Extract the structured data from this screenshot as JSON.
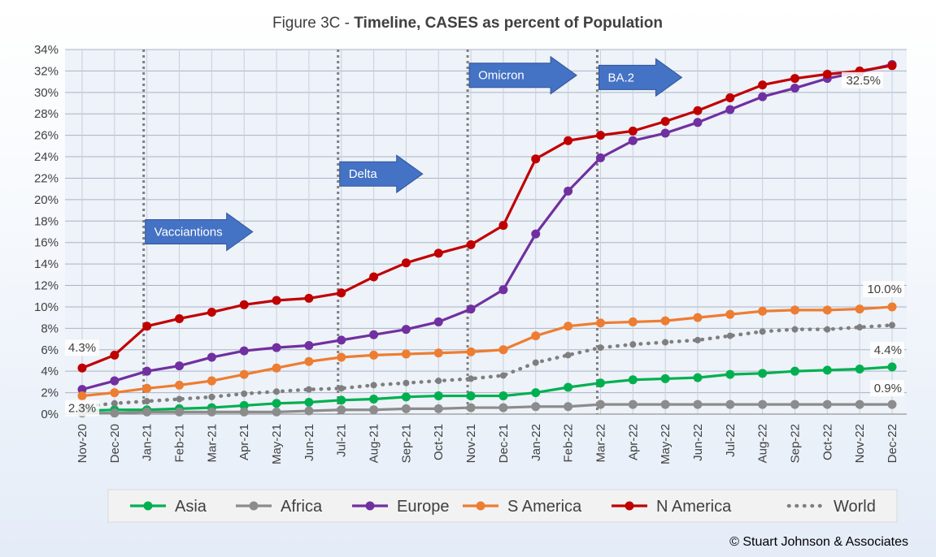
{
  "chart_data": {
    "type": "line",
    "title_prefix": "Figure 3C - ",
    "title_bold": "Timeline, CASES as percent of Population",
    "x": [
      "Nov-20",
      "Dec-20",
      "Jan-21",
      "Feb-21",
      "Mar-21",
      "Apr-21",
      "May-21",
      "Jun-21",
      "Jul-21",
      "Aug-21",
      "Sep-21",
      "Oct-21",
      "Nov-21",
      "Dec-21",
      "Jan-22",
      "Feb-22",
      "Mar-22",
      "Apr-22",
      "May-22",
      "Jun-22",
      "Jul-22",
      "Aug-22",
      "Sep-22",
      "Oct-22",
      "Nov-22",
      "Dec-22"
    ],
    "y_ticks": [
      "0%",
      "2%",
      "4%",
      "6%",
      "8%",
      "10%",
      "12%",
      "14%",
      "16%",
      "18%",
      "20%",
      "22%",
      "24%",
      "26%",
      "28%",
      "30%",
      "32%",
      "34%"
    ],
    "ylim": [
      0,
      34
    ],
    "grid": true,
    "legend_position": "bottom",
    "series": [
      {
        "name": "Asia",
        "color": "#00b050",
        "style": "solid",
        "values": [
          0.3,
          0.4,
          0.4,
          0.5,
          0.6,
          0.8,
          1.0,
          1.1,
          1.3,
          1.4,
          1.6,
          1.7,
          1.7,
          1.7,
          2.0,
          2.5,
          2.9,
          3.2,
          3.3,
          3.4,
          3.7,
          3.8,
          4.0,
          4.1,
          4.2,
          4.4
        ]
      },
      {
        "name": "Africa",
        "color": "#8c8c8c",
        "style": "solid",
        "values": [
          0.1,
          0.1,
          0.2,
          0.2,
          0.2,
          0.2,
          0.2,
          0.3,
          0.4,
          0.4,
          0.5,
          0.5,
          0.6,
          0.6,
          0.7,
          0.7,
          0.9,
          0.9,
          0.9,
          0.9,
          0.9,
          0.9,
          0.9,
          0.9,
          0.9,
          0.9
        ]
      },
      {
        "name": "Europe",
        "color": "#7030a0",
        "style": "solid",
        "values": [
          2.3,
          3.1,
          4.0,
          4.5,
          5.3,
          5.9,
          6.2,
          6.4,
          6.9,
          7.4,
          7.9,
          8.6,
          9.8,
          11.6,
          16.8,
          20.8,
          23.9,
          25.5,
          26.2,
          27.2,
          28.4,
          29.6,
          30.4,
          31.3,
          31.9,
          32.6
        ]
      },
      {
        "name": "S America",
        "color": "#ed7d31",
        "style": "solid",
        "values": [
          1.7,
          2.0,
          2.4,
          2.7,
          3.1,
          3.7,
          4.3,
          4.9,
          5.3,
          5.5,
          5.6,
          5.7,
          5.8,
          6.0,
          7.3,
          8.2,
          8.5,
          8.6,
          8.7,
          9.0,
          9.3,
          9.6,
          9.7,
          9.7,
          9.8,
          10.0
        ]
      },
      {
        "name": "N America",
        "color": "#c00000",
        "style": "solid",
        "values": [
          4.3,
          5.5,
          8.2,
          8.9,
          9.5,
          10.2,
          10.6,
          10.8,
          11.3,
          12.8,
          14.1,
          15.0,
          15.8,
          17.6,
          23.8,
          25.5,
          26.0,
          26.4,
          27.3,
          28.3,
          29.5,
          30.7,
          31.3,
          31.7,
          32.0,
          32.5
        ]
      },
      {
        "name": "World",
        "color": "#7f7f7f",
        "style": "dotted",
        "values": [
          0.7,
          1.0,
          1.2,
          1.4,
          1.6,
          1.9,
          2.1,
          2.3,
          2.4,
          2.7,
          2.9,
          3.1,
          3.3,
          3.6,
          4.8,
          5.5,
          6.2,
          6.5,
          6.7,
          6.9,
          7.3,
          7.7,
          7.9,
          7.9,
          8.1,
          8.3
        ]
      }
    ],
    "event_markers": [
      {
        "at": "Jan-21",
        "label": "Vacciantions",
        "arrow_y": 17.0
      },
      {
        "at": "Jul-21",
        "label": "Delta",
        "arrow_y": 22.4
      },
      {
        "at": "Nov-21",
        "label": "Omicron",
        "arrow_y": 31.6
      },
      {
        "at": "Mar-22",
        "label": "BA.2",
        "arrow_y": 31.4
      }
    ],
    "data_labels": [
      {
        "series": "N America",
        "at": "Nov-20",
        "text": "4.3%"
      },
      {
        "series": "Europe",
        "at": "Nov-20",
        "text": "2.3%"
      },
      {
        "series": "N America",
        "at": "Dec-22",
        "text": "32.5%"
      },
      {
        "series": "S America",
        "at": "Dec-22",
        "text": "10.0%"
      },
      {
        "series": "Asia",
        "at": "Dec-22",
        "text": "4.4%"
      },
      {
        "series": "Africa",
        "at": "Dec-22",
        "text": "0.9%"
      }
    ]
  },
  "copyright": "© Stuart Johnson & Associates"
}
